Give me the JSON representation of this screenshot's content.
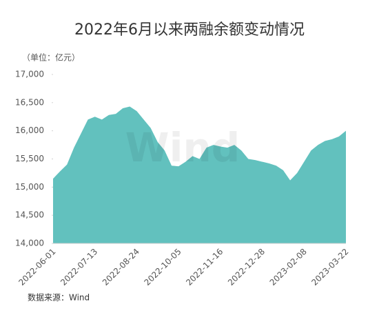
{
  "chart_data": {
    "type": "area",
    "title": "2022年6月以来两融余额变动情况",
    "subtitle": "（单位：亿元）",
    "source": "数据来源：Wind",
    "watermark": "Wind",
    "color": "#62c1be",
    "categories": [
      "2022-06-01",
      null,
      null,
      null,
      null,
      null,
      "2022-07-13",
      null,
      null,
      null,
      null,
      null,
      "2022-08-24",
      null,
      null,
      null,
      null,
      null,
      "2022-10-05",
      null,
      null,
      null,
      null,
      null,
      "2022-11-16",
      null,
      null,
      null,
      null,
      null,
      "2022-12-28",
      null,
      null,
      null,
      null,
      null,
      "2023-02-08",
      null,
      null,
      null,
      null,
      null,
      "2023-03-22"
    ],
    "values": [
      15150,
      15280,
      15400,
      15700,
      15950,
      16200,
      16250,
      16200,
      16280,
      16300,
      16400,
      16430,
      16350,
      16200,
      16050,
      15800,
      15650,
      15380,
      15370,
      15450,
      15550,
      15500,
      15700,
      15750,
      15720,
      15700,
      15750,
      15650,
      15500,
      15480,
      15450,
      15420,
      15380,
      15300,
      15120,
      15250,
      15450,
      15650,
      15750,
      15820,
      15850,
      15900,
      16000
    ],
    "ylim": [
      14000,
      17000
    ],
    "yticks": [
      {
        "value": 14000,
        "label": "14,000"
      },
      {
        "value": 14500,
        "label": "14,500"
      },
      {
        "value": 15000,
        "label": "15,000"
      },
      {
        "value": 15500,
        "label": "15,500"
      },
      {
        "value": 16000,
        "label": "16,000"
      },
      {
        "value": 16500,
        "label": "16,500"
      },
      {
        "value": 17000,
        "label": "17,000"
      }
    ]
  }
}
